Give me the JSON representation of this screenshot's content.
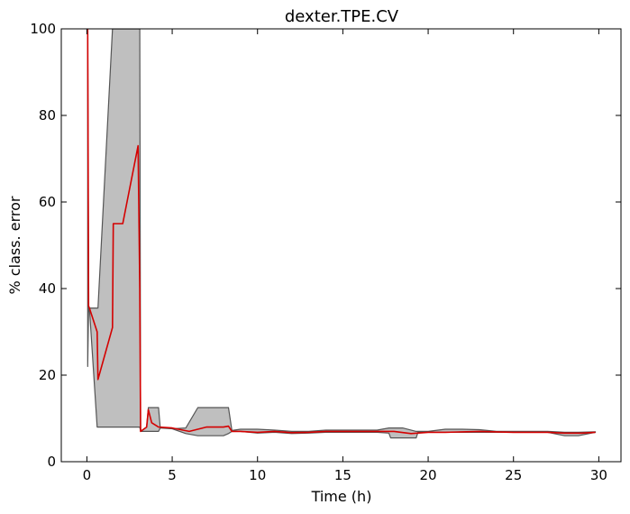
{
  "chart_data": {
    "type": "line",
    "title": "dexter.TPE.CV",
    "xlabel": "Time (h)",
    "ylabel": "% class. error",
    "xlim": [
      -1.5,
      31.3
    ],
    "ylim": [
      0,
      100
    ],
    "xticks": [
      0,
      5,
      10,
      15,
      20,
      25,
      30
    ],
    "yticks": [
      0,
      20,
      40,
      60,
      80,
      100
    ],
    "grid": false,
    "colors": {
      "line": "#d40000",
      "band_fill": "#bfbfbf",
      "band_edge": "#555555"
    },
    "series": [
      {
        "type": "line",
        "x": [
          0.05,
          0.1,
          0.15,
          0.6,
          0.65,
          1.5,
          1.55,
          2.1,
          3.0,
          3.1,
          3.15,
          3.5,
          3.6,
          3.8,
          4.2,
          5.0,
          6.0,
          6.5,
          7.0,
          8.0,
          8.3,
          8.5,
          9.0,
          10.0,
          11.0,
          12.0,
          13.0,
          14.0,
          15.0,
          16.0,
          17.0,
          18.0,
          19.0,
          20.0,
          21.0,
          22.0,
          23.0,
          24.0,
          25.0,
          26.0,
          27.0,
          28.0,
          29.0,
          29.8
        ],
        "y": [
          100,
          36,
          35.5,
          30,
          19,
          31,
          55,
          55,
          73,
          40,
          7,
          8,
          12,
          9,
          8,
          7.8,
          7,
          7.5,
          8,
          8,
          8.2,
          7,
          7,
          6.8,
          7,
          6.7,
          6.8,
          7,
          7,
          7,
          7,
          7,
          6.5,
          6.8,
          6.8,
          6.9,
          7,
          6.9,
          6.8,
          6.8,
          6.8,
          6.6,
          6.6,
          6.8
        ]
      },
      {
        "type": "band",
        "x": [
          0.05,
          0.1,
          0.15,
          0.6,
          0.65,
          1.5,
          1.55,
          2.1,
          3.0,
          3.1,
          3.15,
          3.5,
          3.6,
          4.2,
          4.3,
          5.0,
          5.8,
          6.5,
          7.0,
          8.0,
          8.3,
          8.5,
          9.0,
          10.0,
          11.0,
          12.0,
          13.0,
          14.0,
          15.0,
          16.0,
          17.0,
          17.7,
          17.8,
          18.5,
          19.3,
          19.4,
          20.0,
          21.0,
          22.0,
          23.0,
          24.0,
          25.0,
          26.0,
          27.0,
          28.0,
          28.8,
          29.8
        ],
        "low": [
          22,
          35.5,
          35.5,
          8,
          8,
          8,
          8,
          8,
          8,
          8,
          7,
          7,
          7,
          7,
          7.8,
          7.6,
          6.5,
          6,
          6,
          6,
          6.5,
          7,
          7,
          6.6,
          6.8,
          6.5,
          6.6,
          6.8,
          6.8,
          6.8,
          6.8,
          6.6,
          5.5,
          5.5,
          5.5,
          6.8,
          6.8,
          6.8,
          6.8,
          6.8,
          6.8,
          6.8,
          6.8,
          6.8,
          6,
          6,
          6.8
        ],
        "high": [
          100,
          35.5,
          35.5,
          35.5,
          35.5,
          100,
          100,
          100,
          100,
          100,
          7,
          8,
          12.5,
          12.5,
          7.8,
          7.6,
          7.8,
          12.5,
          12.5,
          12.5,
          12.5,
          7.2,
          7.5,
          7.5,
          7.3,
          7,
          7,
          7.3,
          7.3,
          7.3,
          7.3,
          7.8,
          7.8,
          7.8,
          7,
          7,
          7,
          7.5,
          7.5,
          7.4,
          7,
          7,
          7,
          7,
          6.8,
          6.8,
          6.9
        ]
      }
    ]
  }
}
